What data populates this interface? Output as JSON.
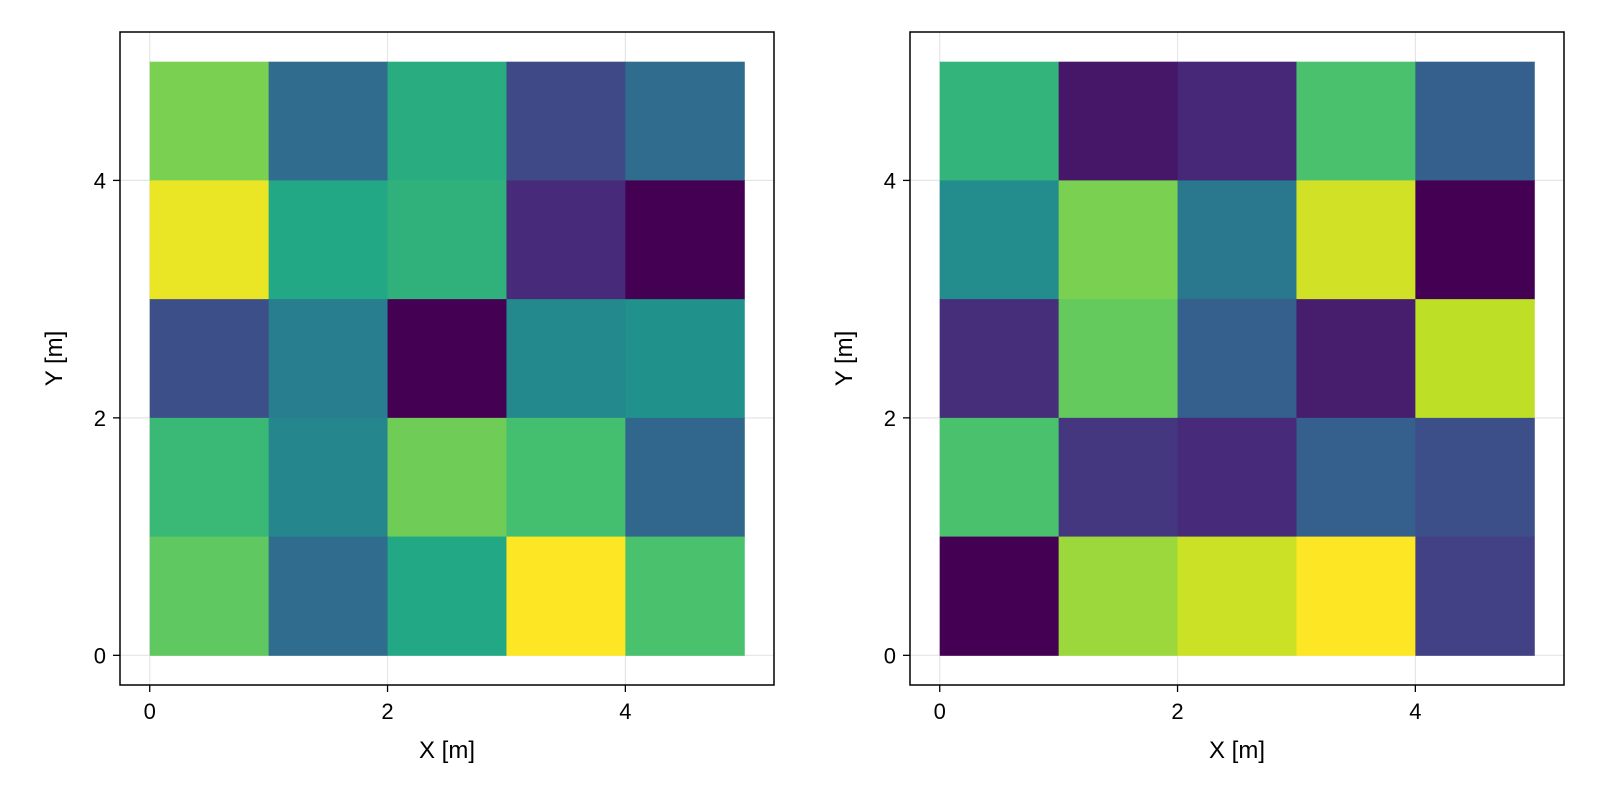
{
  "chart_data": [
    {
      "type": "heatmap",
      "xlabel": "X [m]",
      "ylabel": "Y [m]",
      "xlim": [
        -0.25,
        5.25
      ],
      "ylim": [
        -0.25,
        5.25
      ],
      "xticks": [
        0,
        2,
        4
      ],
      "yticks": [
        0,
        2,
        4
      ],
      "xtick_labels": [
        "0",
        "2",
        "4"
      ],
      "ytick_labels": [
        "0",
        "2",
        "4"
      ],
      "grid": true,
      "cell_size": 1,
      "color_scale": "viridis",
      "value_range": [
        0,
        1
      ],
      "rows_top_to_bottom": [
        [
          0.8,
          0.35,
          0.62,
          0.22,
          0.35
        ],
        [
          0.97,
          0.6,
          0.64,
          0.12,
          0.0
        ],
        [
          0.24,
          0.42,
          0.0,
          0.47,
          0.5
        ],
        [
          0.67,
          0.46,
          0.78,
          0.7,
          0.33
        ],
        [
          0.75,
          0.35,
          0.6,
          1.0,
          0.71
        ]
      ]
    },
    {
      "type": "heatmap",
      "xlabel": "X [m]",
      "ylabel": "Y [m]",
      "xlim": [
        -0.25,
        5.25
      ],
      "ylim": [
        -0.25,
        5.25
      ],
      "xticks": [
        0,
        2,
        4
      ],
      "yticks": [
        0,
        2,
        4
      ],
      "xtick_labels": [
        "0",
        "2",
        "4"
      ],
      "ytick_labels": [
        "0",
        "2",
        "4"
      ],
      "grid": true,
      "cell_size": 1,
      "color_scale": "viridis",
      "value_range": [
        0,
        1
      ],
      "rows_top_to_bottom": [
        [
          0.65,
          0.06,
          0.11,
          0.71,
          0.3
        ],
        [
          0.48,
          0.8,
          0.4,
          0.93,
          0.0
        ],
        [
          0.13,
          0.76,
          0.3,
          0.08,
          0.9
        ],
        [
          0.71,
          0.16,
          0.12,
          0.3,
          0.24
        ],
        [
          0.0,
          0.85,
          0.92,
          1.0,
          0.19
        ]
      ]
    }
  ]
}
